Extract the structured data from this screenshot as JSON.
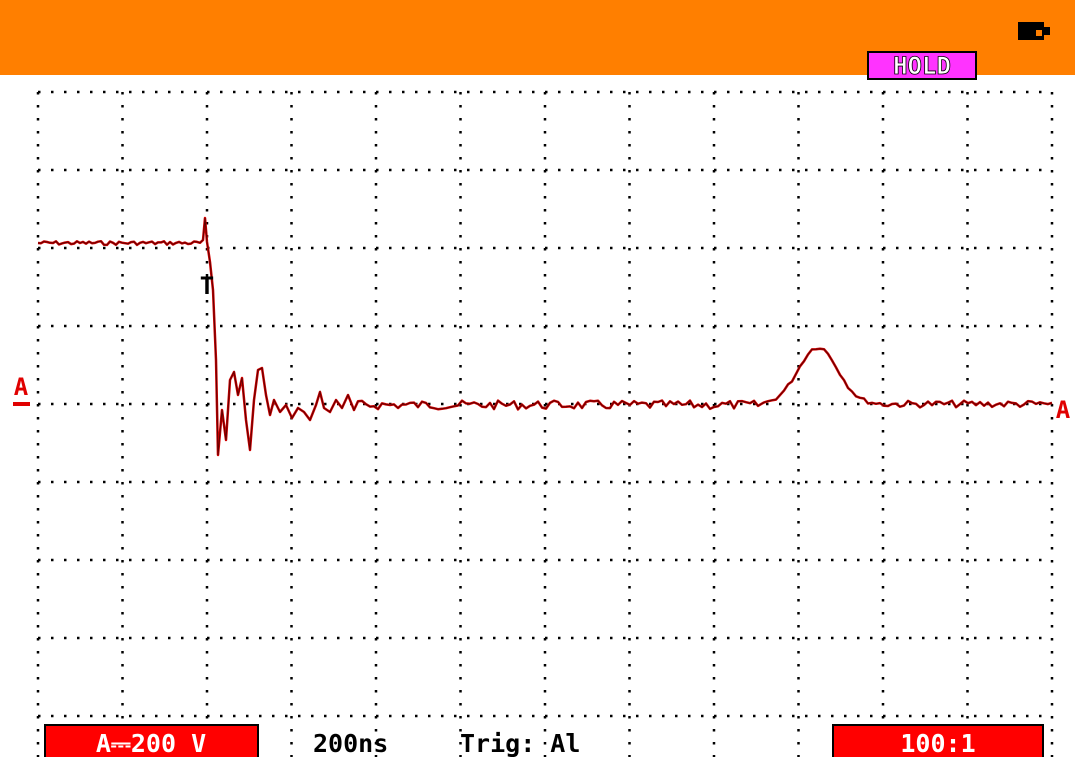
{
  "header": {
    "status": "HOLD"
  },
  "markers": {
    "channel_left": "A",
    "trigger": "T",
    "channel_right": "A"
  },
  "footer": {
    "channel_scale": "A⎓200 V",
    "timebase": "200ns",
    "trigger": "Trig: Al",
    "probe": "100:1"
  }
}
